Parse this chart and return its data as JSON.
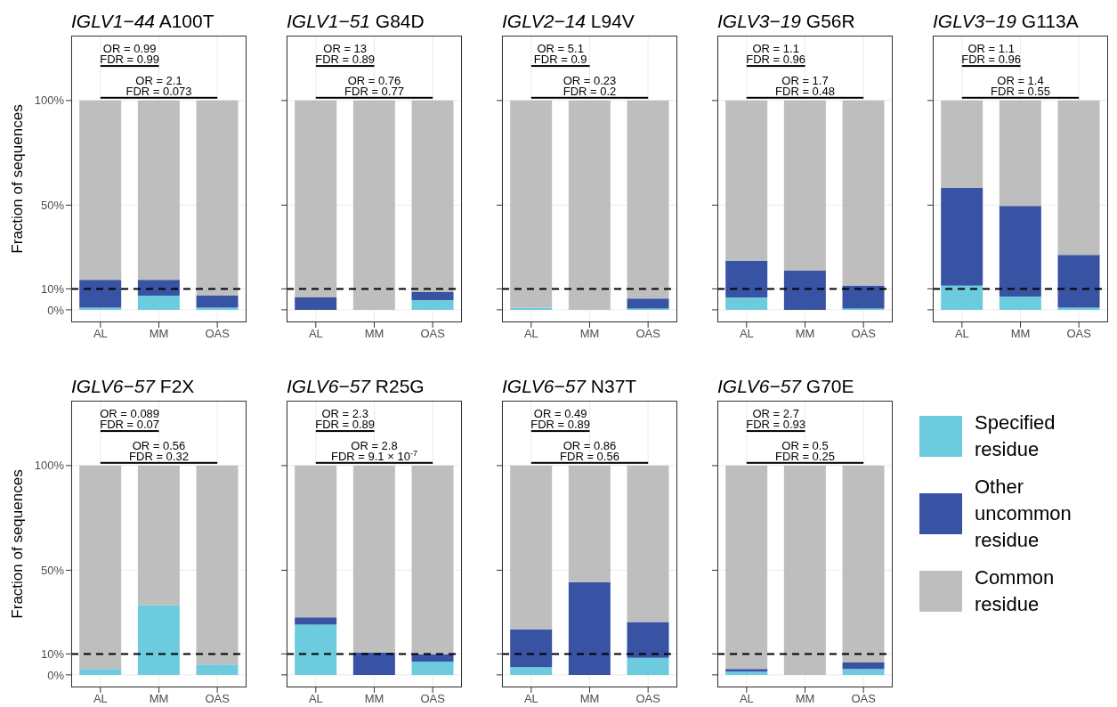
{
  "chart_data": [
    {
      "type": "bar",
      "stacked": true,
      "title": "IGLV1−44 A100T",
      "ylabel": "Fraction of sequences",
      "categories": [
        "AL",
        "MM",
        "OAS"
      ],
      "ylim": [
        -6,
        131
      ],
      "yticks": [
        {
          "value": 0,
          "label": "0%"
        },
        {
          "value": 10,
          "label": "10%"
        },
        {
          "value": 50,
          "label": "50%"
        },
        {
          "value": 100,
          "label": "100%"
        }
      ],
      "grid": true,
      "ref_lines": [
        {
          "axis": "y",
          "value": 10,
          "color": "#000000",
          "line_style": "dashed"
        }
      ],
      "annotations": [
        "OR = 0.99",
        "FDR = 0.99",
        "OR = 2.1",
        "FDR = 0.073"
      ],
      "series": [
        {
          "color": "#6ccbdc",
          "values": [
            1.0,
            6.8,
            1.0
          ]
        },
        {
          "color": "#3852a4",
          "values": [
            13.3,
            7.5,
            5.8
          ]
        },
        {
          "color": "#bebebe",
          "values": [
            85.7,
            85.7,
            93.2
          ]
        }
      ]
    },
    {
      "type": "bar",
      "stacked": true,
      "title": "IGLV1−51 G84D",
      "categories": [
        "AL",
        "MM",
        "OAS"
      ],
      "ylim": [
        -6,
        131
      ],
      "yticks": [
        {
          "value": 0,
          "label": null
        },
        {
          "value": 10,
          "label": null
        },
        {
          "value": 50,
          "label": null
        },
        {
          "value": 100,
          "label": null
        }
      ],
      "tick_labels": "x",
      "grid": true,
      "ref_lines": [
        {
          "axis": "y",
          "value": 10,
          "color": "#000000",
          "line_style": "dashed"
        }
      ],
      "annotations": [
        "OR = 13",
        "FDR = 0.89",
        "OR = 0.76",
        "FDR = 0.77"
      ],
      "series": [
        {
          "color": "#6ccbdc",
          "values": [
            0,
            0,
            4.6
          ]
        },
        {
          "color": "#3852a4",
          "values": [
            5.9,
            0,
            3.9
          ]
        },
        {
          "color": "#bebebe",
          "values": [
            94.1,
            100,
            91.5
          ]
        }
      ]
    },
    {
      "type": "bar",
      "stacked": true,
      "title": "IGLV2−14 L94V",
      "categories": [
        "AL",
        "MM",
        "OAS"
      ],
      "ylim": [
        -6,
        131
      ],
      "yticks": [
        {
          "value": 0,
          "label": null
        },
        {
          "value": 10,
          "label": null
        },
        {
          "value": 50,
          "label": null
        },
        {
          "value": 100,
          "label": null
        }
      ],
      "tick_labels": "x",
      "grid": true,
      "ref_lines": [
        {
          "axis": "y",
          "value": 10,
          "color": "#000000",
          "line_style": "dashed"
        }
      ],
      "annotations": [
        "OR = 5.1",
        "FDR = 0.9",
        "OR = 0.23",
        "FDR = 0.2"
      ],
      "series": [
        {
          "color": "#6ccbdc",
          "values": [
            1.0,
            0,
            0.6
          ]
        },
        {
          "color": "#3852a4",
          "values": [
            0,
            0,
            4.8
          ]
        },
        {
          "color": "#bebebe",
          "values": [
            99.0,
            100,
            94.6
          ]
        }
      ]
    },
    {
      "type": "bar",
      "stacked": true,
      "title": "IGLV3−19 G56R",
      "categories": [
        "AL",
        "MM",
        "OAS"
      ],
      "ylim": [
        -6,
        131
      ],
      "yticks": [
        {
          "value": 0,
          "label": null
        },
        {
          "value": 10,
          "label": null
        },
        {
          "value": 50,
          "label": null
        },
        {
          "value": 100,
          "label": null
        }
      ],
      "tick_labels": "x",
      "grid": true,
      "ref_lines": [
        {
          "axis": "y",
          "value": 10,
          "color": "#000000",
          "line_style": "dashed"
        }
      ],
      "annotations": [
        "OR = 1.1",
        "FDR = 0.96",
        "OR = 1.7",
        "FDR = 0.48"
      ],
      "series": [
        {
          "color": "#6ccbdc",
          "values": [
            5.9,
            0,
            0.6
          ]
        },
        {
          "color": "#3852a4",
          "values": [
            17.6,
            18.7,
            11.0
          ]
        },
        {
          "color": "#bebebe",
          "values": [
            76.5,
            81.3,
            88.4
          ]
        }
      ]
    },
    {
      "type": "bar",
      "stacked": true,
      "title": "IGLV3−19 G113A",
      "categories": [
        "AL",
        "MM",
        "OAS"
      ],
      "ylim": [
        -6,
        131
      ],
      "yticks": [
        {
          "value": 0,
          "label": null
        },
        {
          "value": 10,
          "label": null
        },
        {
          "value": 50,
          "label": null
        },
        {
          "value": 100,
          "label": null
        }
      ],
      "tick_labels": "x",
      "grid": true,
      "ref_lines": [
        {
          "axis": "y",
          "value": 10,
          "color": "#000000",
          "line_style": "dashed"
        }
      ],
      "annotations": [
        "OR = 1.1",
        "FDR = 0.96",
        "OR = 1.4",
        "FDR = 0.55"
      ],
      "series": [
        {
          "color": "#6ccbdc",
          "values": [
            11.6,
            6.3,
            1.0
          ]
        },
        {
          "color": "#3852a4",
          "values": [
            46.8,
            43.3,
            25.2
          ]
        },
        {
          "color": "#bebebe",
          "values": [
            41.6,
            50.4,
            73.8
          ]
        }
      ]
    },
    {
      "type": "bar",
      "stacked": true,
      "title": "IGLV6−57 F2X",
      "ylabel": "Fraction of sequences",
      "categories": [
        "AL",
        "MM",
        "OAS"
      ],
      "ylim": [
        -6,
        131
      ],
      "yticks": [
        {
          "value": 0,
          "label": "0%"
        },
        {
          "value": 10,
          "label": "10%"
        },
        {
          "value": 50,
          "label": "50%"
        },
        {
          "value": 100,
          "label": "100%"
        }
      ],
      "grid": true,
      "ref_lines": [
        {
          "axis": "y",
          "value": 10,
          "color": "#000000",
          "line_style": "dashed"
        }
      ],
      "annotations": [
        "OR = 0.089",
        "FDR = 0.07",
        "OR = 0.56",
        "FDR = 0.32"
      ],
      "series": [
        {
          "color": "#6ccbdc",
          "values": [
            2.8,
            33.2,
            5.0
          ]
        },
        {
          "color": "#3852a4",
          "values": [
            0,
            0,
            0
          ]
        },
        {
          "color": "#bebebe",
          "values": [
            97.2,
            66.8,
            95.0
          ]
        }
      ]
    },
    {
      "type": "bar",
      "stacked": true,
      "title": "IGLV6−57 R25G",
      "categories": [
        "AL",
        "MM",
        "OAS"
      ],
      "ylim": [
        -6,
        131
      ],
      "yticks": [
        {
          "value": 0,
          "label": null
        },
        {
          "value": 10,
          "label": null
        },
        {
          "value": 50,
          "label": null
        },
        {
          "value": 100,
          "label": null
        }
      ],
      "tick_labels": "x",
      "grid": true,
      "ref_lines": [
        {
          "axis": "y",
          "value": 10,
          "color": "#000000",
          "line_style": "dashed"
        }
      ],
      "annotations": [
        "OR = 2.3",
        "FDR = 0.89",
        "OR = 2.8",
        "FDR = 9.1 × 10$^{-7}$"
      ],
      "series": [
        {
          "color": "#6ccbdc",
          "values": [
            24.0,
            0,
            6.3
          ]
        },
        {
          "color": "#3852a4",
          "values": [
            3.5,
            10.7,
            3.5
          ]
        },
        {
          "color": "#bebebe",
          "values": [
            72.5,
            89.3,
            90.2
          ]
        }
      ]
    },
    {
      "type": "bar",
      "stacked": true,
      "title": "IGLV6−57 N37T",
      "categories": [
        "AL",
        "MM",
        "OAS"
      ],
      "ylim": [
        -6,
        131
      ],
      "yticks": [
        {
          "value": 0,
          "label": null
        },
        {
          "value": 10,
          "label": null
        },
        {
          "value": 50,
          "label": null
        },
        {
          "value": 100,
          "label": null
        }
      ],
      "tick_labels": "x",
      "grid": true,
      "ref_lines": [
        {
          "axis": "y",
          "value": 10,
          "color": "#000000",
          "line_style": "dashed"
        }
      ],
      "annotations": [
        "OR = 0.49",
        "FDR = 0.89",
        "OR = 0.86",
        "FDR = 0.56"
      ],
      "series": [
        {
          "color": "#6ccbdc",
          "values": [
            3.7,
            0,
            8.1
          ]
        },
        {
          "color": "#3852a4",
          "values": [
            18.1,
            44.3,
            17.2
          ]
        },
        {
          "color": "#bebebe",
          "values": [
            78.2,
            55.7,
            74.7
          ]
        }
      ]
    },
    {
      "type": "bar",
      "stacked": true,
      "title": "IGLV6−57 G70E",
      "categories": [
        "AL",
        "MM",
        "OAS"
      ],
      "ylim": [
        -6,
        131
      ],
      "yticks": [
        {
          "value": 0,
          "label": null
        },
        {
          "value": 10,
          "label": null
        },
        {
          "value": 50,
          "label": null
        },
        {
          "value": 100,
          "label": null
        }
      ],
      "tick_labels": "x",
      "grid": true,
      "legend": "right",
      "ref_lines": [
        {
          "axis": "y",
          "value": 10,
          "color": "#000000",
          "line_style": "dashed"
        }
      ],
      "annotations": [
        "OR = 2.7",
        "FDR = 0.93",
        "OR = 0.5",
        "FDR = 0.25"
      ],
      "series": [
        {
          "name": "Specified residue",
          "color": "#6ccbdc",
          "values": [
            1.5,
            0,
            2.8
          ]
        },
        {
          "name": "Other uncommon residue",
          "color": "#3852a4",
          "values": [
            1.3,
            0,
            3.1
          ]
        },
        {
          "name": "Common residue",
          "color": "#bebebe",
          "values": [
            97.2,
            100,
            94.1
          ]
        }
      ]
    }
  ]
}
